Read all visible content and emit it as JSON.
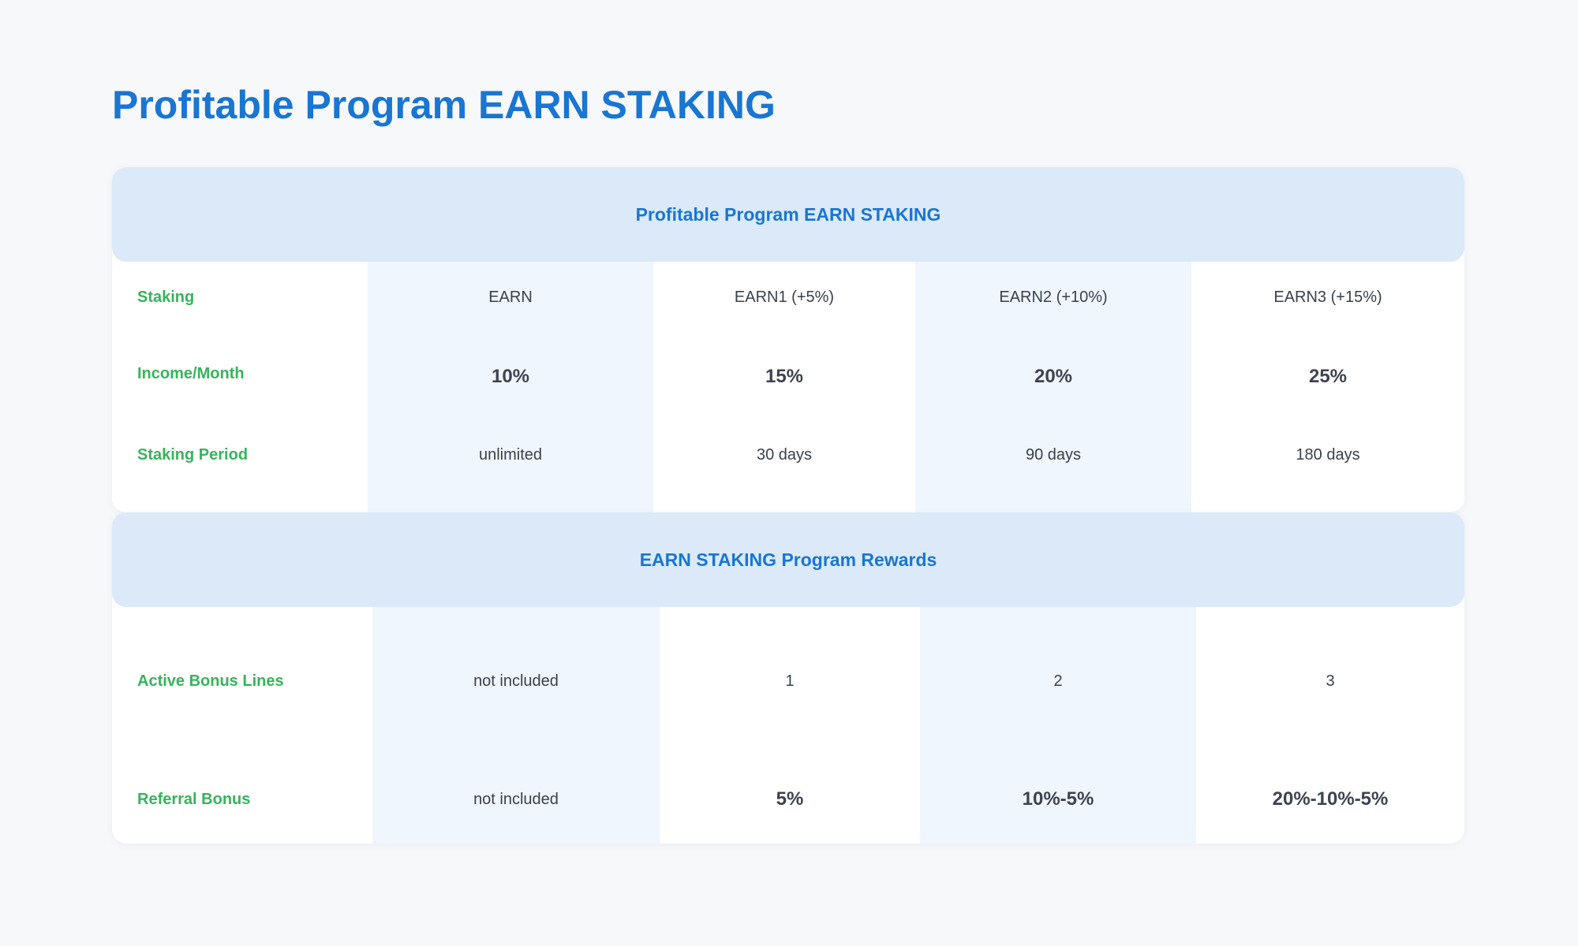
{
  "page": {
    "title": "Profitable Program EARN STAKING"
  },
  "staking_table": {
    "header": "Profitable Program EARN STAKING",
    "rows": [
      {
        "label": "Staking",
        "values": [
          "EARN",
          "EARN1 (+5%)",
          "EARN2 (+10%)",
          "EARN3 (+15%)"
        ]
      },
      {
        "label": "Income/Month",
        "values": [
          "10%",
          "15%",
          "20%",
          "25%"
        ]
      },
      {
        "label": "Staking Period",
        "values": [
          "unlimited",
          "30 days",
          "90 days",
          "180 days"
        ]
      }
    ]
  },
  "rewards_table": {
    "header": "EARN STAKING Program Rewards",
    "rows": [
      {
        "label": "Active Bonus Lines",
        "values": [
          "not included",
          "1",
          "2",
          "3"
        ]
      },
      {
        "label": "Referral Bonus",
        "values": [
          "not included",
          "5%",
          "10%-5%",
          "20%-10%-5%"
        ]
      }
    ]
  },
  "colors": {
    "title": "#1976d2",
    "row_label": "#36b45c",
    "section_header_bg": "#dbe9f8",
    "alt_column_bg": "#eff6fe",
    "page_bg": "#f7f8fa"
  }
}
